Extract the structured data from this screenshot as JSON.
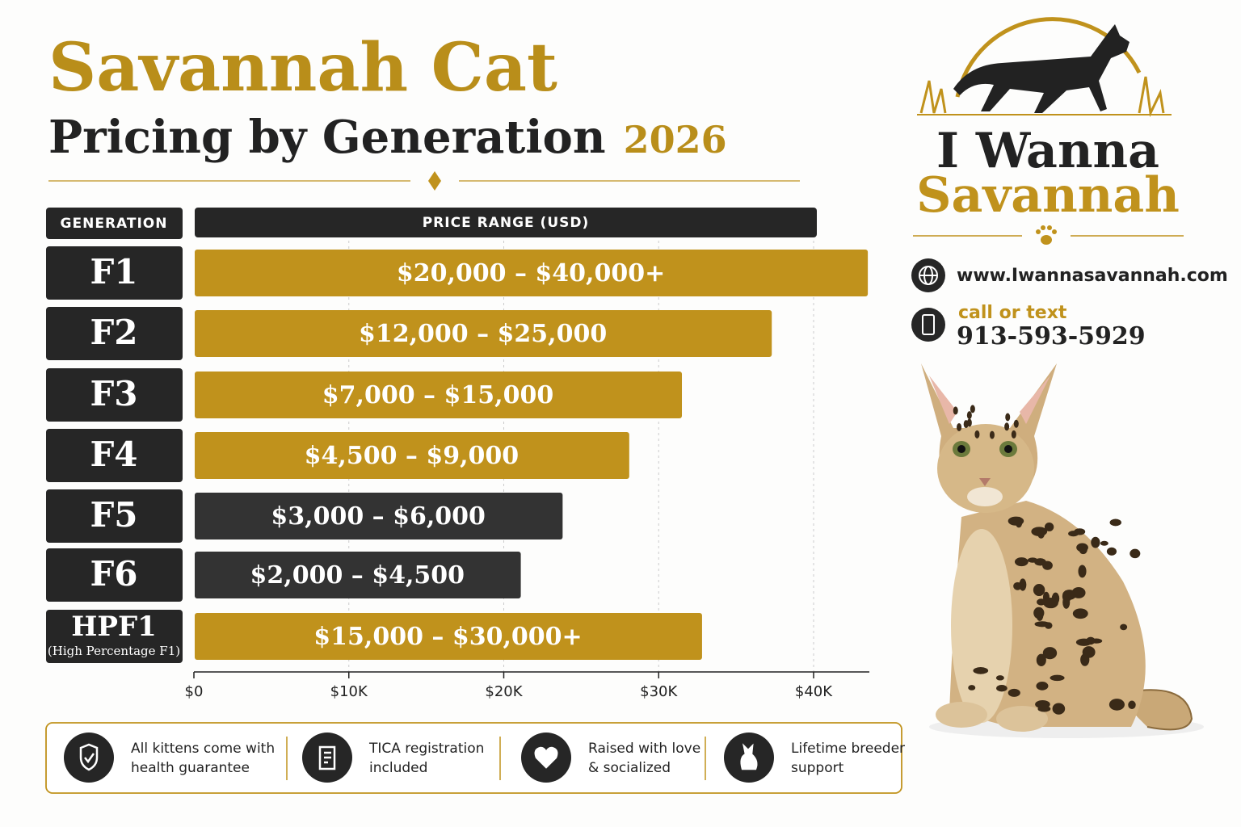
{
  "header": {
    "title": "Savannah Cat",
    "subtitle": "Pricing by Generation",
    "year": "2026"
  },
  "chart_data": {
    "type": "bar",
    "orientation": "horizontal",
    "category_header": "GENERATION",
    "value_header": "PRICE RANGE (USD)",
    "categories": [
      "F1",
      "F2",
      "F3",
      "F4",
      "F5",
      "F6",
      "HPF1"
    ],
    "category_notes": [
      null,
      null,
      null,
      null,
      null,
      null,
      "(High Percentage F1)"
    ],
    "values": [
      43500,
      37300,
      31500,
      28100,
      23800,
      21100,
      32800
    ],
    "range_labels": [
      "$20,000 – $40,000+",
      "$12,000 – $25,000",
      "$7,000 – $15,000",
      "$4,500 – $9,000",
      "$3,000 – $6,000",
      "$2,000 – $4,500",
      "$15,000 – $30,000+"
    ],
    "colors": [
      "#c0921c",
      "#c0921c",
      "#c0921c",
      "#c0921c",
      "#333333",
      "#333333",
      "#c0921c"
    ],
    "xlim": [
      0,
      43600
    ],
    "xticks": [
      {
        "value": 0,
        "label": "$0"
      },
      {
        "value": 10000,
        "label": "$10K"
      },
      {
        "value": 20000,
        "label": "$20K"
      },
      {
        "value": 30000,
        "label": "$30K"
      },
      {
        "value": 40000,
        "label": "$40K"
      }
    ],
    "grid": true
  },
  "logo": {
    "line1": "I Wanna",
    "line2": "Savannah"
  },
  "contact": {
    "website": "www.Iwannasavannah.com",
    "call_label": "call or text",
    "phone": "913-593-5929"
  },
  "features": [
    {
      "lines": [
        "All kittens come with",
        "health guarantee"
      ]
    },
    {
      "lines": [
        "TICA registration",
        "included"
      ]
    },
    {
      "lines": [
        "Raised with love",
        "& socialized"
      ]
    },
    {
      "lines": [
        "Lifetime breeder",
        "support"
      ]
    }
  ]
}
